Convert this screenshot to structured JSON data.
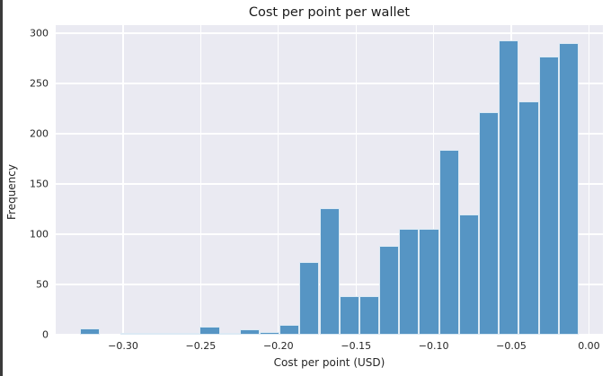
{
  "window": {
    "left_border_color": "#3a3a3a",
    "figure_bg": "#ffffff"
  },
  "chart_data": {
    "type": "bar",
    "subtype": "histogram",
    "title": "Cost per point per wallet",
    "xlabel": "Cost per point (USD)",
    "ylabel": "Frequency",
    "bin_start": -0.3277,
    "bin_width": 0.012845,
    "counts": [
      6,
      0,
      1,
      1,
      1,
      2,
      8,
      1,
      5,
      3,
      10,
      72,
      126,
      38,
      38,
      88,
      105,
      105,
      184,
      120,
      221,
      293,
      232,
      277,
      290
    ],
    "xlim": [
      -0.3434,
      0.009
    ],
    "ylim": [
      0,
      308
    ],
    "x_ticks": [
      -0.3,
      -0.25,
      -0.2,
      -0.15,
      -0.1,
      -0.05,
      0.0
    ],
    "x_tick_labels": [
      "−0.30",
      "−0.25",
      "−0.20",
      "−0.15",
      "−0.10",
      "−0.05",
      "0.00"
    ],
    "y_ticks": [
      0,
      50,
      100,
      150,
      200,
      250,
      300
    ],
    "y_tick_labels": [
      "0",
      "50",
      "100",
      "150",
      "200",
      "250",
      "300"
    ],
    "grid": true,
    "legend": false,
    "colors": {
      "bar_fill": "#5695c4",
      "bar_edge": "#dceaf4",
      "plot_bg": "#eaeaf2",
      "grid": "#ffffff",
      "tick_text": "#262626",
      "title_text": "#1a1a1a"
    }
  }
}
